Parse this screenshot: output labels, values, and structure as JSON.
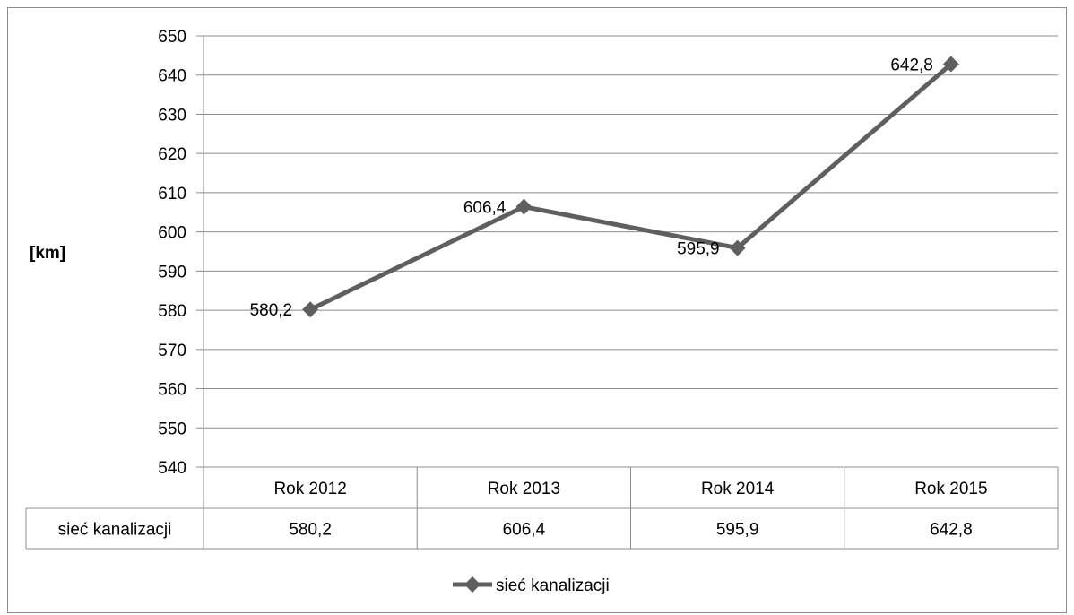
{
  "chart_data": {
    "type": "line",
    "categories": [
      "Rok 2012",
      "Rok 2013",
      "Rok 2014",
      "Rok 2015"
    ],
    "series": [
      {
        "name": "sieć kanalizacji",
        "values": [
          580.2,
          606.4,
          595.9,
          642.8
        ],
        "data_labels": [
          "580,2",
          "606,4",
          "595,9",
          "642,8"
        ],
        "color": "#5f5f5f"
      }
    ],
    "ylabel": "[km]",
    "ylim": [
      540,
      650
    ],
    "yticks": [
      540,
      550,
      560,
      570,
      580,
      590,
      600,
      610,
      620,
      630,
      640,
      650
    ],
    "grid": true,
    "legend": "bottom",
    "data_table": true
  }
}
